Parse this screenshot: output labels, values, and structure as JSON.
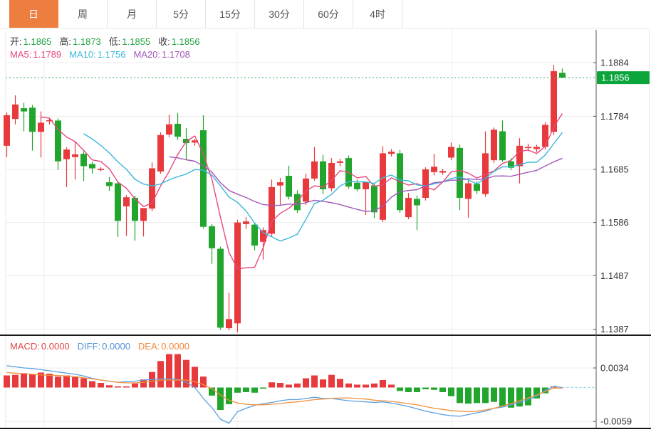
{
  "toolbar": {
    "tabs": [
      {
        "label": "日",
        "active": true
      },
      {
        "label": "周",
        "active": false
      },
      {
        "label": "月",
        "active": false
      },
      {
        "label": "5分",
        "active": false
      },
      {
        "label": "15分",
        "active": false
      },
      {
        "label": "30分",
        "active": false
      },
      {
        "label": "60分",
        "active": false
      },
      {
        "label": "4时",
        "active": false
      }
    ],
    "active_bg": "#ee7e40"
  },
  "legend": {
    "ohlc": {
      "label_color": "#3a3a3a",
      "value_color": "#21a443",
      "items": [
        {
          "label": "开:",
          "value": "1.1865"
        },
        {
          "label": "高:",
          "value": "1.1873"
        },
        {
          "label": "低:",
          "value": "1.1855"
        },
        {
          "label": "收:",
          "value": "1.1856"
        }
      ]
    },
    "ma": {
      "items": [
        {
          "label": "MA5:",
          "value": "1.1789",
          "color": "#e8487c"
        },
        {
          "label": "MA10:",
          "value": "1.1756",
          "color": "#3cb7dc"
        },
        {
          "label": "MA20:",
          "value": "1.1708",
          "color": "#a158b8"
        }
      ]
    },
    "macd": {
      "items": [
        {
          "label": "MACD:",
          "value": "0.0000",
          "color": "#e0454a"
        },
        {
          "label": "DIFF:",
          "value": "0.0000",
          "color": "#5191d6"
        },
        {
          "label": "DEA:",
          "value": "0.0000",
          "color": "#f0883a"
        }
      ]
    }
  },
  "chart_data": {
    "type": "candlestick+macd",
    "grid": true,
    "legend_position": "top-left",
    "price_panel": {
      "y_ticks": [
        "1.1884",
        "1.1784",
        "1.1685",
        "1.1586",
        "1.1487",
        "1.1387"
      ],
      "y_range": [
        1.1387,
        1.1884
      ],
      "current_price": "1.1856",
      "up_color": "#e8393d",
      "down_color": "#22a52c",
      "badge_color": "#0ba53c",
      "price_line_color": "#2fae57",
      "ma_periods": [
        5,
        10,
        20
      ],
      "ma_colors": [
        "#e8487c",
        "#3cb7dc",
        "#a158b8"
      ],
      "candles_ohlc": [
        [
          1.1729,
          1.1791,
          1.1708,
          1.1786
        ],
        [
          1.1779,
          1.1823,
          1.1769,
          1.1806
        ],
        [
          1.1799,
          1.1809,
          1.1756,
          1.1793
        ],
        [
          1.18,
          1.1805,
          1.172,
          1.1755
        ],
        [
          1.1755,
          1.1793,
          1.1707,
          1.1772
        ],
        [
          1.1775,
          1.1781,
          1.1769,
          1.1777
        ],
        [
          1.1776,
          1.178,
          1.1684,
          1.17
        ],
        [
          1.1704,
          1.1726,
          1.1652,
          1.1722
        ],
        [
          1.1708,
          1.1736,
          1.1666,
          1.1713
        ],
        [
          1.1714,
          1.1719,
          1.1663,
          1.1691
        ],
        [
          1.1695,
          1.1699,
          1.1677,
          1.1687
        ],
        [
          1.1684,
          1.1689,
          1.1681,
          1.1686
        ],
        [
          1.1661,
          1.1671,
          1.1645,
          1.1654
        ],
        [
          1.1659,
          1.1663,
          1.1559,
          1.1589
        ],
        [
          1.1616,
          1.1637,
          1.1561,
          1.1633
        ],
        [
          1.1632,
          1.1636,
          1.1552,
          1.1589
        ],
        [
          1.1589,
          1.1594,
          1.156,
          1.1613
        ],
        [
          1.1612,
          1.1698,
          1.1607,
          1.1687
        ],
        [
          1.1681,
          1.1754,
          1.1677,
          1.1749
        ],
        [
          1.175,
          1.1787,
          1.1745,
          1.1769
        ],
        [
          1.177,
          1.179,
          1.174,
          1.1746
        ],
        [
          1.1742,
          1.1762,
          1.1702,
          1.1734
        ],
        [
          1.1735,
          1.1742,
          1.1729,
          1.1739
        ],
        [
          1.1758,
          1.1786,
          1.1575,
          1.1578
        ],
        [
          1.1579,
          1.1583,
          1.1509,
          1.1538
        ],
        [
          1.1537,
          1.1541,
          1.1386,
          1.139
        ],
        [
          1.1389,
          1.1455,
          1.1385,
          1.1406
        ],
        [
          1.1398,
          1.1591,
          1.1381,
          1.1586
        ],
        [
          1.1583,
          1.1596,
          1.1574,
          1.1588
        ],
        [
          1.1582,
          1.1586,
          1.1534,
          1.1543
        ],
        [
          1.155,
          1.1577,
          1.1517,
          1.1572
        ],
        [
          1.1565,
          1.1666,
          1.1559,
          1.1652
        ],
        [
          1.1655,
          1.1669,
          1.1617,
          1.1661
        ],
        [
          1.1673,
          1.1692,
          1.1629,
          1.1634
        ],
        [
          1.1639,
          1.1646,
          1.1604,
          1.1609
        ],
        [
          1.1625,
          1.1677,
          1.1619,
          1.1668
        ],
        [
          1.1668,
          1.1727,
          1.1664,
          1.17
        ],
        [
          1.17,
          1.1712,
          1.1639,
          1.1648
        ],
        [
          1.165,
          1.1706,
          1.1644,
          1.1697
        ],
        [
          1.1697,
          1.1705,
          1.1691,
          1.17
        ],
        [
          1.1706,
          1.1711,
          1.1649,
          1.1653
        ],
        [
          1.166,
          1.1666,
          1.1644,
          1.1648
        ],
        [
          1.1648,
          1.1656,
          1.16,
          1.1661
        ],
        [
          1.1655,
          1.1659,
          1.1594,
          1.1605
        ],
        [
          1.1591,
          1.1728,
          1.1587,
          1.1715
        ],
        [
          1.1714,
          1.1723,
          1.1709,
          1.1718
        ],
        [
          1.1715,
          1.1721,
          1.1604,
          1.1609
        ],
        [
          1.1596,
          1.1641,
          1.1592,
          1.1632
        ],
        [
          1.163,
          1.1636,
          1.1572,
          1.1618
        ],
        [
          1.1632,
          1.1689,
          1.1627,
          1.1685
        ],
        [
          1.168,
          1.1714,
          1.1674,
          1.169
        ],
        [
          1.1679,
          1.1686,
          1.1675,
          1.1682
        ],
        [
          1.1707,
          1.1735,
          1.1702,
          1.1727
        ],
        [
          1.1725,
          1.1731,
          1.1609,
          1.1632
        ],
        [
          1.163,
          1.1664,
          1.1595,
          1.1659
        ],
        [
          1.1658,
          1.1663,
          1.1639,
          1.1645
        ],
        [
          1.1639,
          1.1756,
          1.1634,
          1.1715
        ],
        [
          1.1702,
          1.1763,
          1.1697,
          1.1759
        ],
        [
          1.1756,
          1.1776,
          1.1699,
          1.1702
        ],
        [
          1.17,
          1.1706,
          1.1684,
          1.1688
        ],
        [
          1.1691,
          1.1743,
          1.1659,
          1.1729
        ],
        [
          1.1725,
          1.1733,
          1.1719,
          1.1727
        ],
        [
          1.1723,
          1.1731,
          1.1717,
          1.1727
        ],
        [
          1.1727,
          1.1773,
          1.1722,
          1.1768
        ],
        [
          1.1755,
          1.188,
          1.1749,
          1.1868
        ],
        [
          1.1865,
          1.1873,
          1.1855,
          1.1856
        ]
      ]
    },
    "macd_panel": {
      "y_ticks": [
        "0.0034",
        "-0.0059"
      ],
      "hist_up_color": "#e8393d",
      "hist_down_color": "#22a52c",
      "diff_color": "#5aa0e0",
      "dea_color": "#f0913c",
      "zero_dash_color": "#8fd4ea",
      "hist": [
        0.0021,
        0.0022,
        0.0025,
        0.0023,
        0.0026,
        0.0024,
        0.0019,
        0.0021,
        0.0018,
        0.0016,
        0.0011,
        0.0008,
        0.0004,
        0.0001,
        0.0002,
        0.0007,
        0.0014,
        0.0027,
        0.0046,
        0.0058,
        0.0058,
        0.0048,
        0.0036,
        0.0019,
        -0.0014,
        -0.0039,
        -0.0029,
        -0.0009,
        -0.0008,
        -0.0009,
        -0.0002,
        0.0009,
        0.0008,
        0.0005,
        0.0007,
        0.0016,
        0.0021,
        0.0014,
        0.0022,
        0.0015,
        0.0007,
        0.0005,
        0.0005,
        0.0007,
        0.0013,
        0.0005,
        -0.0006,
        -0.0008,
        -0.0008,
        -0.0003,
        -0.0004,
        -0.0008,
        -0.0015,
        -0.0027,
        -0.0028,
        -0.0027,
        -0.0027,
        -0.0025,
        -0.0033,
        -0.0035,
        -0.0033,
        -0.0031,
        -0.0019,
        -0.001,
        0.0002,
        0.0
      ],
      "diff": [
        0.0038,
        0.0036,
        0.0034,
        0.0033,
        0.0031,
        0.0029,
        0.0027,
        0.0025,
        0.0023,
        0.002,
        0.0016,
        0.0013,
        0.0011,
        0.0009,
        0.001,
        0.0011,
        0.0013,
        0.0014,
        0.0015,
        0.0015,
        0.0014,
        0.0009,
        0.0,
        -0.0019,
        -0.0035,
        -0.0055,
        -0.0062,
        -0.0042,
        -0.0036,
        -0.0031,
        -0.0028,
        -0.0026,
        -0.0023,
        -0.0021,
        -0.0021,
        -0.0019,
        -0.0017,
        -0.0019,
        -0.0019,
        -0.0021,
        -0.0023,
        -0.0024,
        -0.0025,
        -0.0026,
        -0.0025,
        -0.0027,
        -0.003,
        -0.0033,
        -0.0037,
        -0.0041,
        -0.0044,
        -0.0047,
        -0.0049,
        -0.005,
        -0.0047,
        -0.0044,
        -0.0041,
        -0.0036,
        -0.0034,
        -0.003,
        -0.0026,
        -0.0021,
        -0.0015,
        -0.0005,
        0.0002,
        0.0
      ],
      "dea": [
        0.0026,
        0.0025,
        0.0024,
        0.0023,
        0.0022,
        0.0021,
        0.0021,
        0.002,
        0.0019,
        0.0017,
        0.0015,
        0.0013,
        0.0011,
        0.0009,
        0.0008,
        0.0008,
        0.0009,
        0.0011,
        0.0013,
        0.0013,
        0.0013,
        0.0013,
        0.001,
        0.0005,
        -0.0002,
        -0.0013,
        -0.0022,
        -0.0027,
        -0.0029,
        -0.003,
        -0.003,
        -0.0029,
        -0.0028,
        -0.0026,
        -0.0025,
        -0.0023,
        -0.0021,
        -0.002,
        -0.0019,
        -0.0018,
        -0.0018,
        -0.0019,
        -0.002,
        -0.0022,
        -0.0023,
        -0.0024,
        -0.0026,
        -0.0028,
        -0.003,
        -0.0033,
        -0.0036,
        -0.0038,
        -0.004,
        -0.0041,
        -0.0042,
        -0.0041,
        -0.0039,
        -0.0036,
        -0.0032,
        -0.0028,
        -0.0023,
        -0.0018,
        -0.0013,
        -0.0007,
        -0.0001,
        -0.0001
      ]
    }
  }
}
